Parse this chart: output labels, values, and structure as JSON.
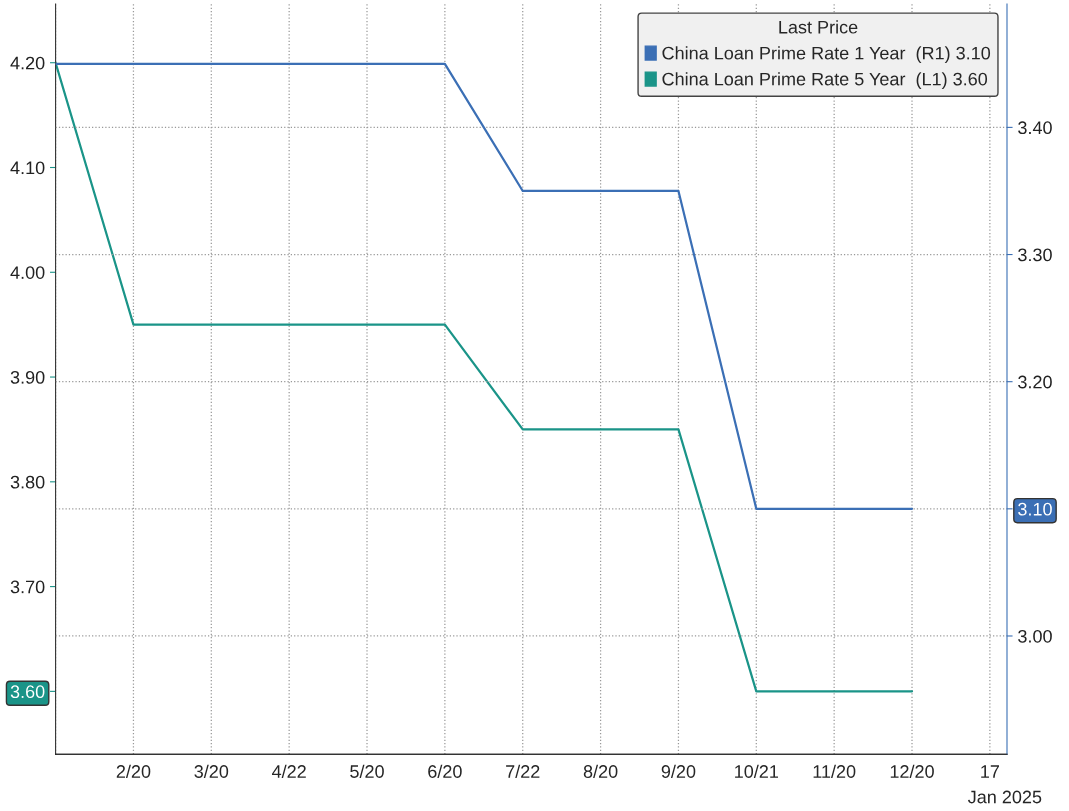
{
  "chart_data": {
    "type": "line",
    "categories": [
      null,
      "2/20",
      "3/20",
      "4/22",
      "5/20",
      "6/20",
      "7/22",
      "8/20",
      "9/20",
      "10/21",
      "11/20",
      "12/20",
      "17"
    ],
    "series": [
      {
        "name": "China Loan Prime Rate 1 Year  (R1) 3.10",
        "color": "#3b6fb5",
        "axis": "y2",
        "values": [
          3.45,
          3.45,
          3.45,
          3.45,
          3.45,
          3.45,
          3.35,
          3.35,
          3.35,
          3.1,
          3.1,
          3.1,
          null
        ]
      },
      {
        "name": "China Loan Prime Rate 5 Year  (L1) 3.60",
        "color": "#1a9488",
        "values": [
          4.2,
          3.95,
          3.95,
          3.95,
          3.95,
          3.95,
          3.85,
          3.85,
          3.85,
          3.6,
          3.6,
          3.6,
          null
        ]
      }
    ],
    "legend_title": "Last Price",
    "legend": "top right",
    "ylim": [
      3.54,
      4.256
    ],
    "yticks": [
      {
        "value": 3.6,
        "label": "3.60"
      },
      {
        "value": 3.7,
        "label": "3.70"
      },
      {
        "value": 3.8,
        "label": "3.80"
      },
      {
        "value": 3.9,
        "label": "3.90"
      },
      {
        "value": 4.0,
        "label": "4.00"
      },
      {
        "value": 4.1,
        "label": "4.10"
      },
      {
        "value": 4.2,
        "label": "4.20"
      }
    ],
    "y2lim": [
      2.907,
      3.497
    ],
    "y2ticks": [
      {
        "value": 3.0,
        "label": "3.00"
      },
      {
        "value": 3.1,
        "label": "3.10"
      },
      {
        "value": 3.2,
        "label": "3.20"
      },
      {
        "value": 3.3,
        "label": "3.30"
      },
      {
        "value": 3.4,
        "label": "3.40"
      }
    ],
    "grid": true,
    "marker": "none",
    "line_style": "solid",
    "annotations": [
      "Jan 2025"
    ]
  }
}
